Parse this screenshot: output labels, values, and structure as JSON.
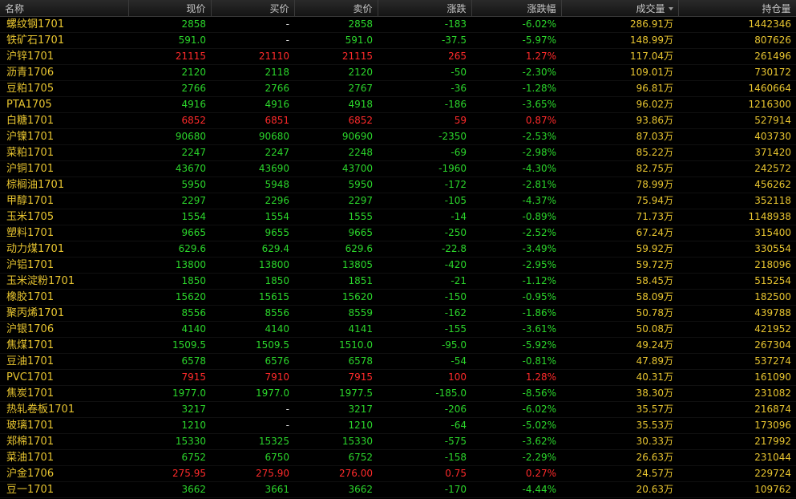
{
  "colors": {
    "up": "#ff2a2a",
    "down": "#2bd62b",
    "flat": "#e0e0e0",
    "name": "#e8c530",
    "volume": "#e8c530",
    "open_interest": "#e8c530"
  },
  "columns": [
    {
      "key": "name",
      "label": "名称"
    },
    {
      "key": "price",
      "label": "现价"
    },
    {
      "key": "bid",
      "label": "买价"
    },
    {
      "key": "ask",
      "label": "卖价"
    },
    {
      "key": "change",
      "label": "涨跌"
    },
    {
      "key": "change_pct",
      "label": "涨跌幅"
    },
    {
      "key": "volume",
      "label": "成交量",
      "sort_icon": "sort-desc-icon"
    },
    {
      "key": "open_interest",
      "label": "持仓量"
    }
  ],
  "rows": [
    {
      "name": "螺纹钢1701",
      "price": "2858",
      "bid": "-",
      "ask": "2858",
      "change": "-183",
      "change_pct": "-6.02%",
      "volume": "286.91",
      "volume_unit": "万",
      "open_interest": "1442346",
      "direction": "down"
    },
    {
      "name": "铁矿石1701",
      "price": "591.0",
      "bid": "-",
      "ask": "591.0",
      "change": "-37.5",
      "change_pct": "-5.97%",
      "volume": "148.99",
      "volume_unit": "万",
      "open_interest": "807626",
      "direction": "down"
    },
    {
      "name": "沪锌1701",
      "price": "21115",
      "bid": "21110",
      "ask": "21115",
      "change": "265",
      "change_pct": "1.27%",
      "volume": "117.04",
      "volume_unit": "万",
      "open_interest": "261496",
      "direction": "up"
    },
    {
      "name": "沥青1706",
      "price": "2120",
      "bid": "2118",
      "ask": "2120",
      "change": "-50",
      "change_pct": "-2.30%",
      "volume": "109.01",
      "volume_unit": "万",
      "open_interest": "730172",
      "direction": "down"
    },
    {
      "name": "豆粕1705",
      "price": "2766",
      "bid": "2766",
      "ask": "2767",
      "change": "-36",
      "change_pct": "-1.28%",
      "volume": "96.81",
      "volume_unit": "万",
      "open_interest": "1460664",
      "direction": "down"
    },
    {
      "name": "PTA1705",
      "price": "4916",
      "bid": "4916",
      "ask": "4918",
      "change": "-186",
      "change_pct": "-3.65%",
      "volume": "96.02",
      "volume_unit": "万",
      "open_interest": "1216300",
      "direction": "down"
    },
    {
      "name": "白糖1701",
      "price": "6852",
      "bid": "6851",
      "ask": "6852",
      "change": "59",
      "change_pct": "0.87%",
      "volume": "93.86",
      "volume_unit": "万",
      "open_interest": "527914",
      "direction": "up"
    },
    {
      "name": "沪镍1701",
      "price": "90680",
      "bid": "90680",
      "ask": "90690",
      "change": "-2350",
      "change_pct": "-2.53%",
      "volume": "87.03",
      "volume_unit": "万",
      "open_interest": "403730",
      "direction": "down"
    },
    {
      "name": "菜粕1701",
      "price": "2247",
      "bid": "2247",
      "ask": "2248",
      "change": "-69",
      "change_pct": "-2.98%",
      "volume": "85.22",
      "volume_unit": "万",
      "open_interest": "371420",
      "direction": "down"
    },
    {
      "name": "沪铜1701",
      "price": "43670",
      "bid": "43690",
      "ask": "43700",
      "change": "-1960",
      "change_pct": "-4.30%",
      "volume": "82.75",
      "volume_unit": "万",
      "open_interest": "242572",
      "direction": "down"
    },
    {
      "name": "棕榈油1701",
      "price": "5950",
      "bid": "5948",
      "ask": "5950",
      "change": "-172",
      "change_pct": "-2.81%",
      "volume": "78.99",
      "volume_unit": "万",
      "open_interest": "456262",
      "direction": "down"
    },
    {
      "name": "甲醇1701",
      "price": "2297",
      "bid": "2296",
      "ask": "2297",
      "change": "-105",
      "change_pct": "-4.37%",
      "volume": "75.94",
      "volume_unit": "万",
      "open_interest": "352118",
      "direction": "down"
    },
    {
      "name": "玉米1705",
      "price": "1554",
      "bid": "1554",
      "ask": "1555",
      "change": "-14",
      "change_pct": "-0.89%",
      "volume": "71.73",
      "volume_unit": "万",
      "open_interest": "1148938",
      "direction": "down"
    },
    {
      "name": "塑料1701",
      "price": "9665",
      "bid": "9655",
      "ask": "9665",
      "change": "-250",
      "change_pct": "-2.52%",
      "volume": "67.24",
      "volume_unit": "万",
      "open_interest": "315400",
      "direction": "down"
    },
    {
      "name": "动力煤1701",
      "price": "629.6",
      "bid": "629.4",
      "ask": "629.6",
      "change": "-22.8",
      "change_pct": "-3.49%",
      "volume": "59.92",
      "volume_unit": "万",
      "open_interest": "330554",
      "direction": "down"
    },
    {
      "name": "沪铝1701",
      "price": "13800",
      "bid": "13800",
      "ask": "13805",
      "change": "-420",
      "change_pct": "-2.95%",
      "volume": "59.72",
      "volume_unit": "万",
      "open_interest": "218096",
      "direction": "down"
    },
    {
      "name": "玉米淀粉1701",
      "price": "1850",
      "bid": "1850",
      "ask": "1851",
      "change": "-21",
      "change_pct": "-1.12%",
      "volume": "58.45",
      "volume_unit": "万",
      "open_interest": "515254",
      "direction": "down"
    },
    {
      "name": "橡胶1701",
      "price": "15620",
      "bid": "15615",
      "ask": "15620",
      "change": "-150",
      "change_pct": "-0.95%",
      "volume": "58.09",
      "volume_unit": "万",
      "open_interest": "182500",
      "direction": "down"
    },
    {
      "name": "聚丙烯1701",
      "price": "8556",
      "bid": "8556",
      "ask": "8559",
      "change": "-162",
      "change_pct": "-1.86%",
      "volume": "50.78",
      "volume_unit": "万",
      "open_interest": "439788",
      "direction": "down"
    },
    {
      "name": "沪银1706",
      "price": "4140",
      "bid": "4140",
      "ask": "4141",
      "change": "-155",
      "change_pct": "-3.61%",
      "volume": "50.08",
      "volume_unit": "万",
      "open_interest": "421952",
      "direction": "down"
    },
    {
      "name": "焦煤1701",
      "price": "1509.5",
      "bid": "1509.5",
      "ask": "1510.0",
      "change": "-95.0",
      "change_pct": "-5.92%",
      "volume": "49.24",
      "volume_unit": "万",
      "open_interest": "267304",
      "direction": "down"
    },
    {
      "name": "豆油1701",
      "price": "6578",
      "bid": "6576",
      "ask": "6578",
      "change": "-54",
      "change_pct": "-0.81%",
      "volume": "47.89",
      "volume_unit": "万",
      "open_interest": "537274",
      "direction": "down"
    },
    {
      "name": "PVC1701",
      "price": "7915",
      "bid": "7910",
      "ask": "7915",
      "change": "100",
      "change_pct": "1.28%",
      "volume": "40.31",
      "volume_unit": "万",
      "open_interest": "161090",
      "direction": "up"
    },
    {
      "name": "焦炭1701",
      "price": "1977.0",
      "bid": "1977.0",
      "ask": "1977.5",
      "change": "-185.0",
      "change_pct": "-8.56%",
      "volume": "38.30",
      "volume_unit": "万",
      "open_interest": "231082",
      "direction": "down"
    },
    {
      "name": "热轧卷板1701",
      "price": "3217",
      "bid": "-",
      "ask": "3217",
      "change": "-206",
      "change_pct": "-6.02%",
      "volume": "35.57",
      "volume_unit": "万",
      "open_interest": "216874",
      "direction": "down"
    },
    {
      "name": "玻璃1701",
      "price": "1210",
      "bid": "-",
      "ask": "1210",
      "change": "-64",
      "change_pct": "-5.02%",
      "volume": "35.53",
      "volume_unit": "万",
      "open_interest": "173096",
      "direction": "down"
    },
    {
      "name": "郑棉1701",
      "price": "15330",
      "bid": "15325",
      "ask": "15330",
      "change": "-575",
      "change_pct": "-3.62%",
      "volume": "30.33",
      "volume_unit": "万",
      "open_interest": "217992",
      "direction": "down"
    },
    {
      "name": "菜油1701",
      "price": "6752",
      "bid": "6750",
      "ask": "6752",
      "change": "-158",
      "change_pct": "-2.29%",
      "volume": "26.63",
      "volume_unit": "万",
      "open_interest": "231044",
      "direction": "down"
    },
    {
      "name": "沪金1706",
      "price": "275.95",
      "bid": "275.90",
      "ask": "276.00",
      "change": "0.75",
      "change_pct": "0.27%",
      "volume": "24.57",
      "volume_unit": "万",
      "open_interest": "229724",
      "direction": "up"
    },
    {
      "name": "豆一1701",
      "price": "3662",
      "bid": "3661",
      "ask": "3662",
      "change": "-170",
      "change_pct": "-4.44%",
      "volume": "20.63",
      "volume_unit": "万",
      "open_interest": "109762",
      "direction": "down"
    }
  ]
}
